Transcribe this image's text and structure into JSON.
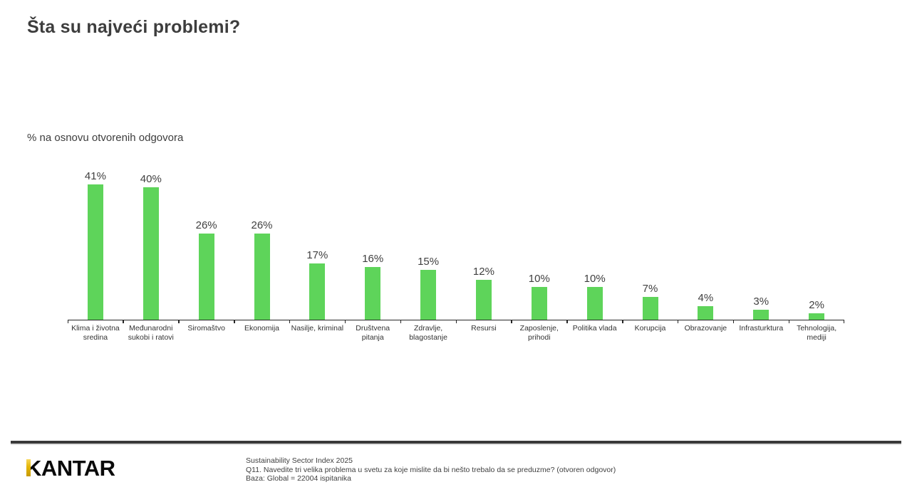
{
  "header": {
    "title": "Šta su najveći problemi?",
    "subtitle": "% na osnovu otvorenih odgovora"
  },
  "chart_data": {
    "type": "bar",
    "title": "Šta su najveći problemi?",
    "subtitle": "% na osnovu otvorenih odgovora",
    "categories": [
      "Klima i životna sredina",
      "Međunarodni sukobi i ratovi",
      "Siromaštvo",
      "Ekonomija",
      "Nasilje, kriminal",
      "Društvena pitanja",
      "Zdravlje, blagostanje",
      "Resursi",
      "Zaposlenje, prihodi",
      "Politika vlada",
      "Korupcija",
      "Obrazovanje",
      "Infrasturktura",
      "Tehnologija, mediji"
    ],
    "values": [
      41,
      40,
      26,
      26,
      17,
      16,
      15,
      12,
      10,
      10,
      7,
      4,
      3,
      2
    ],
    "value_suffix": "%",
    "bar_color": "#5ED45A",
    "axis_color": "#262626",
    "xlabel": "",
    "ylabel": "",
    "ylim": [
      0,
      42
    ],
    "grid": false,
    "legend": null
  },
  "footer": {
    "logo": "KANTAR",
    "source_lines": [
      "Sustainability Sector Index 2025",
      "Q11. Navedite tri velika problema u svetu za koje mislite da bi nešto trebalo da se preduzme? (otvoren odgovor)",
      "Baza: Global = 22004 ispitanika"
    ]
  }
}
